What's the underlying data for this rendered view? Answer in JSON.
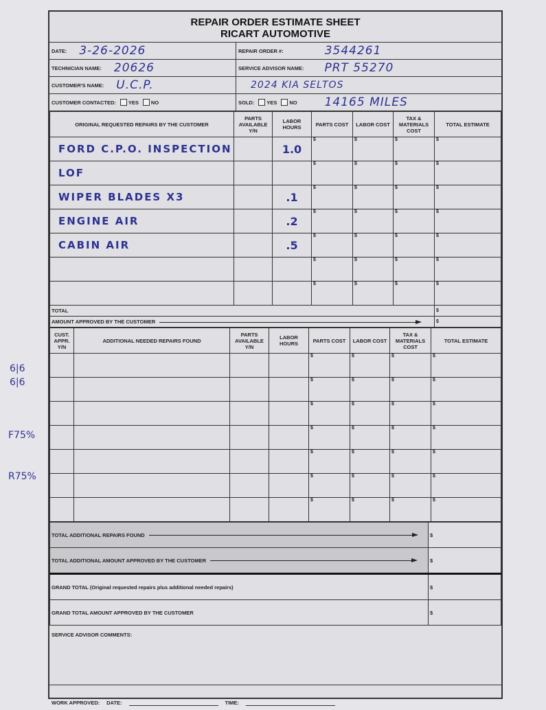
{
  "header": {
    "title": "REPAIR ORDER ESTIMATE SHEET",
    "company": "RICART AUTOMOTIVE"
  },
  "info": {
    "date_label": "DATE:",
    "date": "3-26-2026",
    "repair_order_label": "REPAIR ORDER #:",
    "repair_order": "3544261",
    "technician_label": "TECHNICIAN NAME:",
    "technician": "20626",
    "advisor_label": "SERVICE ADVISOR NAME:",
    "advisor": "PRT 55270",
    "customer_label": "CUSTOMER'S NAME:",
    "customer": "U.C.P.",
    "vehicle": "2024 KIA SELTOS",
    "contacted_label": "CUSTOMER CONTACTED:",
    "sold_label": "SOLD:",
    "yes": "YES",
    "no": "NO",
    "mileage": "14165 MILES"
  },
  "original": {
    "headers": [
      "ORIGINAL REQUESTED REPAIRS BY THE CUSTOMER",
      "PARTS AVAILABLE Y/N",
      "LABOR HOURS",
      "PARTS COST",
      "LABOR COST",
      "TAX & MATERIALS COST",
      "TOTAL ESTIMATE"
    ],
    "rows": [
      {
        "desc": "FORD C.P.O. INSPECTION",
        "hours": "1.0"
      },
      {
        "desc": "LOF",
        "hours": ""
      },
      {
        "desc": "WIPER BLADES X3",
        "hours": ".1"
      },
      {
        "desc": "ENGINE AIR",
        "hours": ".2"
      },
      {
        "desc": "CABIN AIR",
        "hours": ".5"
      },
      {
        "desc": "",
        "hours": ""
      },
      {
        "desc": "",
        "hours": ""
      }
    ],
    "total_label": "TOTAL",
    "approved_label": "AMOUNT APPROVED BY THE CUSTOMER"
  },
  "additional": {
    "headers": [
      "CUST. APPR. Y/N",
      "ADDITIONAL NEEDED REPAIRS FOUND",
      "PARTS AVAILABLE Y/N",
      "LABOR HOURS",
      "PARTS COST",
      "LABOR COST",
      "TAX & MATERIALS COST",
      "TOTAL ESTIMATE"
    ],
    "row_count": 7,
    "total_found_label": "TOTAL ADDITIONAL REPAIRS FOUND",
    "total_approved_label": "TOTAL ADDITIONAL AMOUNT APPROVED BY THE CUSTOMER"
  },
  "grand": {
    "total_label": "GRAND TOTAL (Original requested repairs plus additional needed repairs)",
    "approved_label": "GRAND TOTAL AMOUNT APPROVED BY THE CUSTOMER",
    "comments_label": "SERVICE ADVISOR COMMENTS:"
  },
  "footer": {
    "work_approved": "WORK APPROVED:",
    "date": "DATE:",
    "time": "TIME:"
  },
  "currency": "$",
  "margin_notes": {
    "tread_top": "6|6",
    "tread_bottom": "6|6",
    "front": "F75%",
    "rear": "R75%"
  },
  "colors": {
    "ink": "#2d3190",
    "paper": "#e0e0e4",
    "shade": "#c9c9cd"
  }
}
